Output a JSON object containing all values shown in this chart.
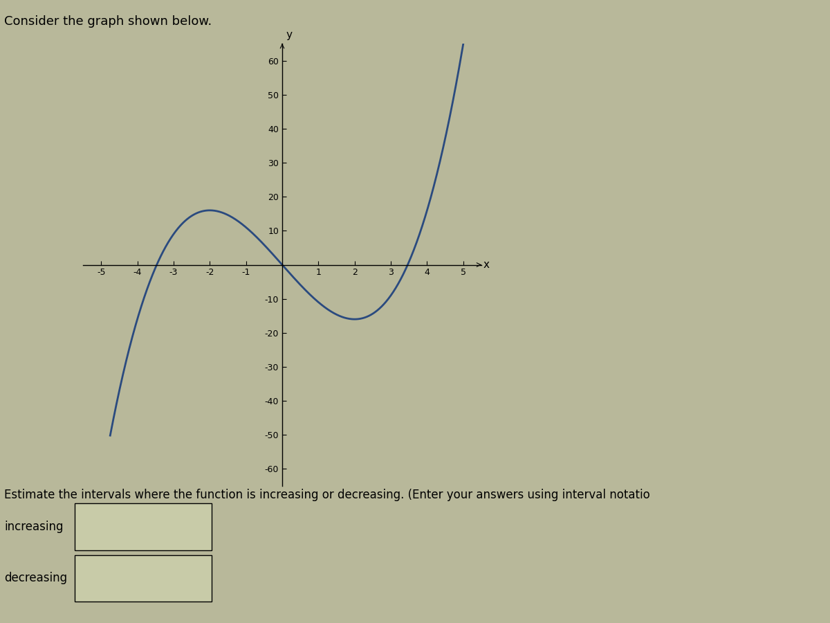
{
  "title": "Consider the graph shown below.",
  "xlabel": "x",
  "ylabel": "y",
  "xlim": [
    -5.5,
    5.5
  ],
  "ylim": [
    -65,
    65
  ],
  "xticks": [
    -5,
    -4,
    -3,
    -2,
    -1,
    1,
    2,
    3,
    4,
    5
  ],
  "yticks": [
    -60,
    -50,
    -40,
    -30,
    -20,
    -10,
    10,
    20,
    30,
    40,
    50,
    60
  ],
  "curve_color": "#2a4a7f",
  "curve_linewidth": 2.0,
  "bg_color": "#b8b89a",
  "plot_bg_color": "#b8b89a",
  "right_bg_color": "#c8cba8",
  "footer_text": "Estimate the intervals where the function is increasing or decreasing. (Enter your answers using interval notatio",
  "label_increasing": "increasing",
  "label_decreasing": "decreasing",
  "footer_fontsize": 12,
  "label_fontsize": 12,
  "title_fontsize": 13,
  "axis_x_start": -4.75,
  "axis_x_end": 5.0
}
